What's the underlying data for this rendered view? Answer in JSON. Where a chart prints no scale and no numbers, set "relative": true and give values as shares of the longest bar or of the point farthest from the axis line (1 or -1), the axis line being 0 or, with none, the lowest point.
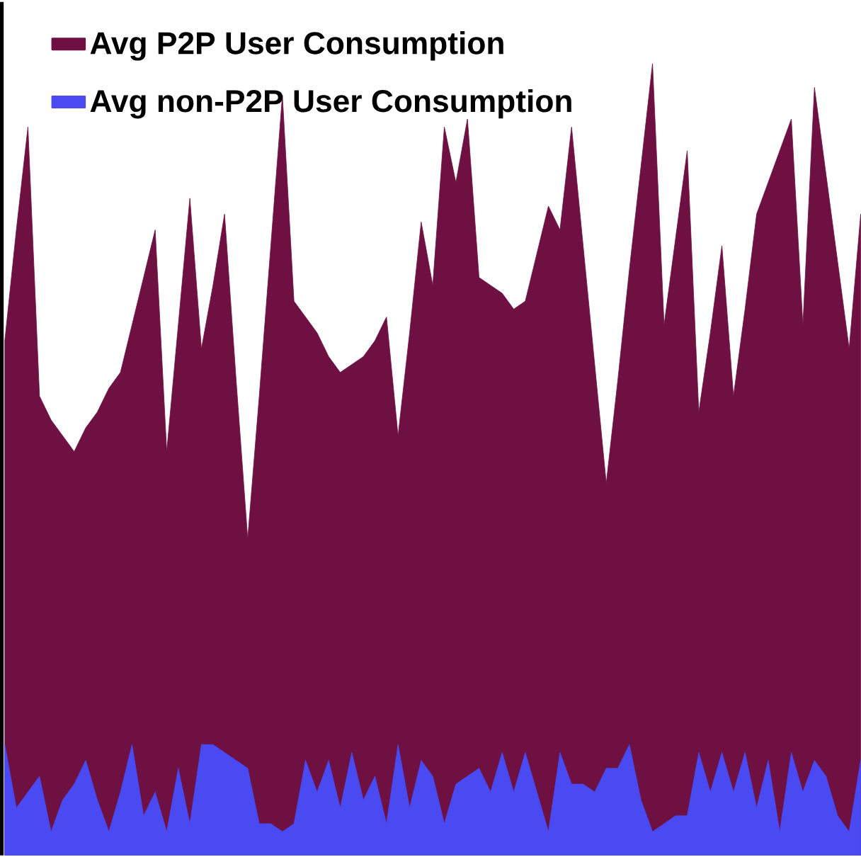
{
  "chart_data": {
    "type": "area",
    "relative": true,
    "legend": "top left",
    "categories": [
      null,
      null,
      null,
      null,
      null,
      null,
      null,
      null,
      null,
      null,
      null,
      null,
      null,
      null,
      null,
      null,
      null,
      null,
      null,
      null,
      null,
      null,
      null,
      null,
      null,
      null,
      null,
      null,
      null,
      null,
      null,
      null,
      null,
      null,
      null,
      null,
      null,
      null,
      null,
      null,
      null,
      null,
      null,
      null,
      null,
      null,
      null,
      null,
      null,
      null,
      null,
      null,
      null,
      null,
      null,
      null,
      null,
      null,
      null,
      null,
      null,
      null,
      null,
      null,
      null,
      null,
      null,
      null,
      null,
      null,
      null,
      null,
      null,
      null,
      null
    ],
    "series": [
      {
        "name": "Avg P2P User Consumption",
        "color": "#6e1042",
        "values": [
          0.65,
          0.79,
          0.92,
          0.58,
          0.55,
          0.53,
          0.51,
          0.54,
          0.56,
          0.59,
          0.61,
          0.67,
          0.73,
          0.79,
          0.51,
          0.67,
          0.83,
          0.64,
          0.72,
          0.81,
          0.6,
          0.4,
          0.58,
          0.77,
          0.96,
          0.7,
          0.68,
          0.66,
          0.63,
          0.61,
          0.62,
          0.63,
          0.65,
          0.68,
          0.53,
          0.66,
          0.8,
          0.72,
          0.92,
          0.85,
          0.93,
          0.73,
          0.72,
          0.71,
          0.69,
          0.7,
          0.76,
          0.82,
          0.79,
          0.92,
          0.77,
          0.62,
          0.47,
          0.6,
          0.74,
          0.87,
          1,
          0.67,
          0.78,
          0.89,
          0.56,
          0.66,
          0.77,
          0.58,
          0.69,
          0.81,
          0.85,
          0.89,
          0.93,
          0.67,
          0.97,
          0.86,
          0.75,
          0.64,
          0.81
        ]
      },
      {
        "name": "Avg non-P2P User Consumption",
        "color": "#4a4af2",
        "values": [
          0.14,
          0.06,
          0.08,
          0.1,
          0.03,
          0.07,
          0.09,
          0.12,
          0.07,
          0.03,
          0.08,
          0.14,
          0.05,
          0.08,
          0.03,
          0.11,
          0.04,
          0.14,
          0.14,
          0.13,
          0.12,
          0.11,
          0.04,
          0.04,
          0.03,
          0.04,
          0.12,
          0.08,
          0.12,
          0.06,
          0.13,
          0.07,
          0.1,
          0.04,
          0.14,
          0.06,
          0.12,
          0.1,
          0.04,
          0.09,
          0.1,
          0.11,
          0.08,
          0.13,
          0.08,
          0.13,
          0.08,
          0.03,
          0.13,
          0.09,
          0.09,
          0.08,
          0.11,
          0.11,
          0.14,
          0.07,
          0.03,
          0.04,
          0.05,
          0.05,
          0.13,
          0.08,
          0.13,
          0.08,
          0.13,
          0.06,
          0.12,
          0.03,
          0.13,
          0.08,
          0.12,
          0.1,
          0.05,
          0.03,
          0.12
        ]
      }
    ]
  }
}
